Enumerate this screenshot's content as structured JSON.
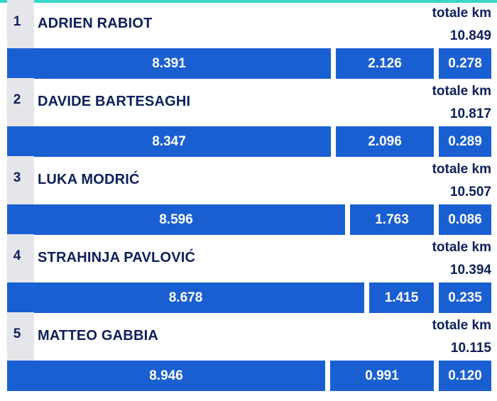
{
  "chart_data": {
    "type": "bar",
    "total_label": "totale km",
    "players": [
      {
        "rank": "1",
        "name": "ADRIEN RABIOT",
        "total": "10.849",
        "segments": [
          8.391,
          2.126,
          0.278
        ],
        "segment_labels": [
          "8.391",
          "2.126",
          "0.278"
        ]
      },
      {
        "rank": "2",
        "name": "DAVIDE BARTESAGHI",
        "total": "10.817",
        "segments": [
          8.347,
          2.096,
          0.289
        ],
        "segment_labels": [
          "8.347",
          "2.096",
          "0.289"
        ]
      },
      {
        "rank": "3",
        "name": "LUKA MODRIĆ",
        "total": "10.507",
        "segments": [
          8.596,
          1.763,
          0.086
        ],
        "segment_labels": [
          "8.596",
          "1.763",
          "0.086"
        ]
      },
      {
        "rank": "4",
        "name": "STRAHINJA PAVLOVIĆ",
        "total": "10.394",
        "segments": [
          8.678,
          1.415,
          0.235
        ],
        "segment_labels": [
          "8.678",
          "1.415",
          "0.235"
        ]
      },
      {
        "rank": "5",
        "name": "MATTEO GABBIA",
        "total": "10.115",
        "segments": [
          8.946,
          0.991,
          0.12
        ],
        "segment_labels": [
          "8.946",
          "0.991",
          "0.120"
        ]
      }
    ],
    "colors": {
      "bar": "#1a5fd2",
      "text": "#0d1f5c",
      "rank_bg": "#e4e6ea",
      "accent": "#37d6c9"
    }
  }
}
